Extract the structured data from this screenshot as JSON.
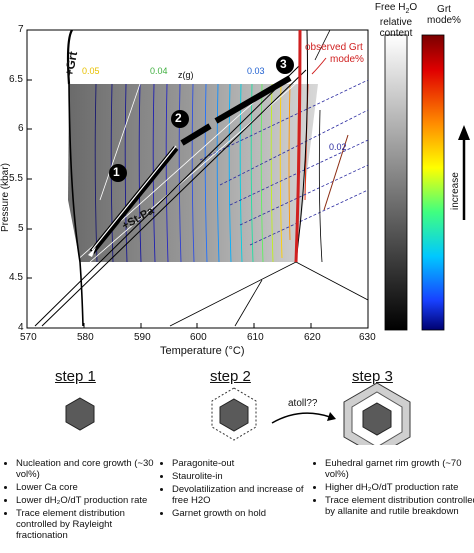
{
  "phase_diagram": {
    "x_ticks": [
      "570",
      "580",
      "590",
      "600",
      "610",
      "620",
      "630"
    ],
    "y_ticks": [
      "4",
      "4.5",
      "5",
      "5.5",
      "6",
      "6.5",
      "7"
    ],
    "xlabel": "Temperature (°C)",
    "ylabel": "Pressure (kbar)",
    "labels": {
      "grt_plus": "+Grt",
      "st_pa": "+St-Pa",
      "z_g": "z(g)",
      "observed": "observed Grt",
      "mode": "mode%",
      "v005": "0.05",
      "v004": "0.04",
      "v003": "0.03",
      "v002": "0.02"
    },
    "markers": [
      "1",
      "2",
      "3"
    ]
  },
  "colorbars": {
    "water_title_1": "Free H",
    "water_title_sub": "2",
    "water_title_2": "O",
    "water_title_3": "relative",
    "water_title_4": "content",
    "grt_title_1": "Grt",
    "grt_title_2": "mode%",
    "increase": "increase"
  },
  "steps": [
    {
      "title": "step 1",
      "bullets": [
        "Nucleation and core growth (~30 vol%)",
        "Lower Ca core",
        "Lower dH₂O/dT production rate",
        "Trace element distribution controlled by Rayleight fractionation"
      ]
    },
    {
      "title": "step 2",
      "bullets": [
        "Paragonite-out",
        "Staurolite-in",
        "Devolatilization and increase of free H2O",
        "Garnet growth on hold"
      ]
    },
    {
      "title": "step 3",
      "bullets": [
        "Euhedral garnet rim growth (~70 vol%)",
        "Higher dH₂O/dT production rate",
        "Trace element distribution controlled by allanite and rutile breakdown"
      ]
    }
  ],
  "arrow_label": "atoll??"
}
